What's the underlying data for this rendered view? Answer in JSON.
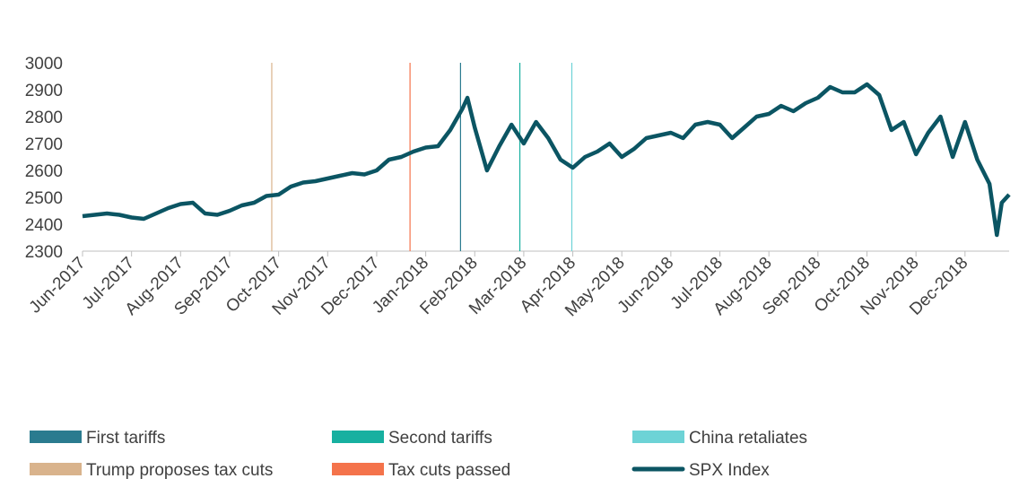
{
  "chart_data": {
    "type": "line",
    "xticks": [
      {
        "value": 0,
        "label": "Jun-2017"
      },
      {
        "value": 1,
        "label": "Jul-2017"
      },
      {
        "value": 2,
        "label": "Aug-2017"
      },
      {
        "value": 3,
        "label": "Sep-2017"
      },
      {
        "value": 4,
        "label": "Oct-2017"
      },
      {
        "value": 5,
        "label": "Nov-2017"
      },
      {
        "value": 6,
        "label": "Dec-2017"
      },
      {
        "value": 7,
        "label": "Jan-2018"
      },
      {
        "value": 8,
        "label": "Feb-2018"
      },
      {
        "value": 9,
        "label": "Mar-2018"
      },
      {
        "value": 10,
        "label": "Apr-2018"
      },
      {
        "value": 11,
        "label": "May-2018"
      },
      {
        "value": 12,
        "label": "Jun-2018"
      },
      {
        "value": 13,
        "label": "Jul-2018"
      },
      {
        "value": 14,
        "label": "Aug-2018"
      },
      {
        "value": 15,
        "label": "Sep-2018"
      },
      {
        "value": 16,
        "label": "Oct-2018"
      },
      {
        "value": 17,
        "label": "Nov-2018"
      },
      {
        "value": 18,
        "label": "Dec-2018"
      }
    ],
    "xlim": [
      0,
      18.9
    ],
    "ylim": [
      2300,
      3000
    ],
    "yticks": [
      2300,
      2400,
      2500,
      2600,
      2700,
      2800,
      2900,
      3000
    ],
    "events": [
      {
        "name": "First tariffs",
        "color": "#2a7b8f",
        "x": 7.71
      },
      {
        "name": "Second tariffs",
        "color": "#17b0a0",
        "x": 8.92
      },
      {
        "name": "China retaliates",
        "color": "#6dd3d6",
        "x": 9.98
      },
      {
        "name": "Trump proposes tax cuts",
        "color": "#d9b38c",
        "x": 3.86
      },
      {
        "name": "Tax cuts passed",
        "color": "#f4734b",
        "x": 6.68
      }
    ],
    "series": [
      {
        "name": "SPX Index",
        "color": "#0b5563",
        "x": [
          0,
          0.25,
          0.5,
          0.75,
          1,
          1.25,
          1.5,
          1.75,
          2,
          2.25,
          2.5,
          2.75,
          3,
          3.25,
          3.5,
          3.75,
          4,
          4.25,
          4.5,
          4.75,
          5,
          5.25,
          5.5,
          5.75,
          6,
          6.25,
          6.5,
          6.75,
          7,
          7.25,
          7.5,
          7.75,
          7.85,
          8,
          8.25,
          8.5,
          8.75,
          9,
          9.25,
          9.5,
          9.75,
          10,
          10.25,
          10.5,
          10.75,
          11,
          11.25,
          11.5,
          11.75,
          12,
          12.25,
          12.5,
          12.75,
          13,
          13.25,
          13.5,
          13.75,
          14,
          14.25,
          14.5,
          14.75,
          15,
          15.25,
          15.5,
          15.75,
          16,
          16.25,
          16.5,
          16.75,
          17,
          17.25,
          17.5,
          17.75,
          18,
          18.25,
          18.5,
          18.65,
          18.75,
          18.9
        ],
        "values": [
          2430,
          2435,
          2440,
          2435,
          2425,
          2420,
          2440,
          2460,
          2475,
          2480,
          2440,
          2435,
          2450,
          2470,
          2480,
          2505,
          2510,
          2540,
          2555,
          2560,
          2570,
          2580,
          2590,
          2585,
          2600,
          2640,
          2650,
          2670,
          2685,
          2690,
          2750,
          2830,
          2870,
          2760,
          2600,
          2690,
          2770,
          2700,
          2780,
          2720,
          2640,
          2610,
          2650,
          2670,
          2700,
          2650,
          2680,
          2720,
          2730,
          2740,
          2720,
          2770,
          2780,
          2770,
          2720,
          2760,
          2800,
          2810,
          2840,
          2820,
          2850,
          2870,
          2910,
          2890,
          2890,
          2920,
          2880,
          2750,
          2780,
          2660,
          2740,
          2800,
          2650,
          2780,
          2640,
          2550,
          2360,
          2480,
          2510
        ]
      }
    ]
  }
}
